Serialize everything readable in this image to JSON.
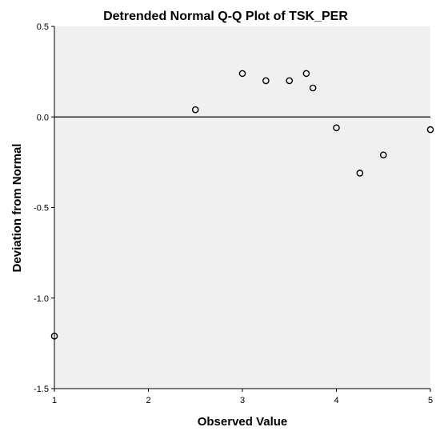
{
  "chart_data": {
    "type": "scatter",
    "title": "Detrended Normal Q-Q Plot of TSK_PER",
    "xlabel": "Observed Value",
    "ylabel": "Deviation from Normal",
    "xlim": [
      1,
      5
    ],
    "ylim": [
      -1.5,
      0.5
    ],
    "x_ticks": [
      1,
      2,
      3,
      4,
      5
    ],
    "x_tick_labels": [
      "1",
      "2",
      "3",
      "4",
      "5"
    ],
    "y_ticks": [
      0.5,
      0.0,
      -0.5,
      -1.0,
      -1.5
    ],
    "y_tick_labels": [
      "0.5",
      "0.0",
      "-0.5",
      "-1.0",
      "-1.5"
    ],
    "reference_line_y": 0.0,
    "grid": false,
    "colors": {
      "plot_background": "#f0f0f0",
      "marker": "#000000",
      "reference_line": "#000000"
    },
    "points": [
      {
        "x": 1.0,
        "y": -1.21
      },
      {
        "x": 2.5,
        "y": 0.04
      },
      {
        "x": 3.0,
        "y": 0.24
      },
      {
        "x": 3.25,
        "y": 0.2
      },
      {
        "x": 3.5,
        "y": 0.2
      },
      {
        "x": 3.68,
        "y": 0.24
      },
      {
        "x": 3.75,
        "y": 0.16
      },
      {
        "x": 4.0,
        "y": -0.06
      },
      {
        "x": 4.25,
        "y": -0.31
      },
      {
        "x": 4.5,
        "y": -0.21
      },
      {
        "x": 5.0,
        "y": -0.07
      }
    ]
  }
}
